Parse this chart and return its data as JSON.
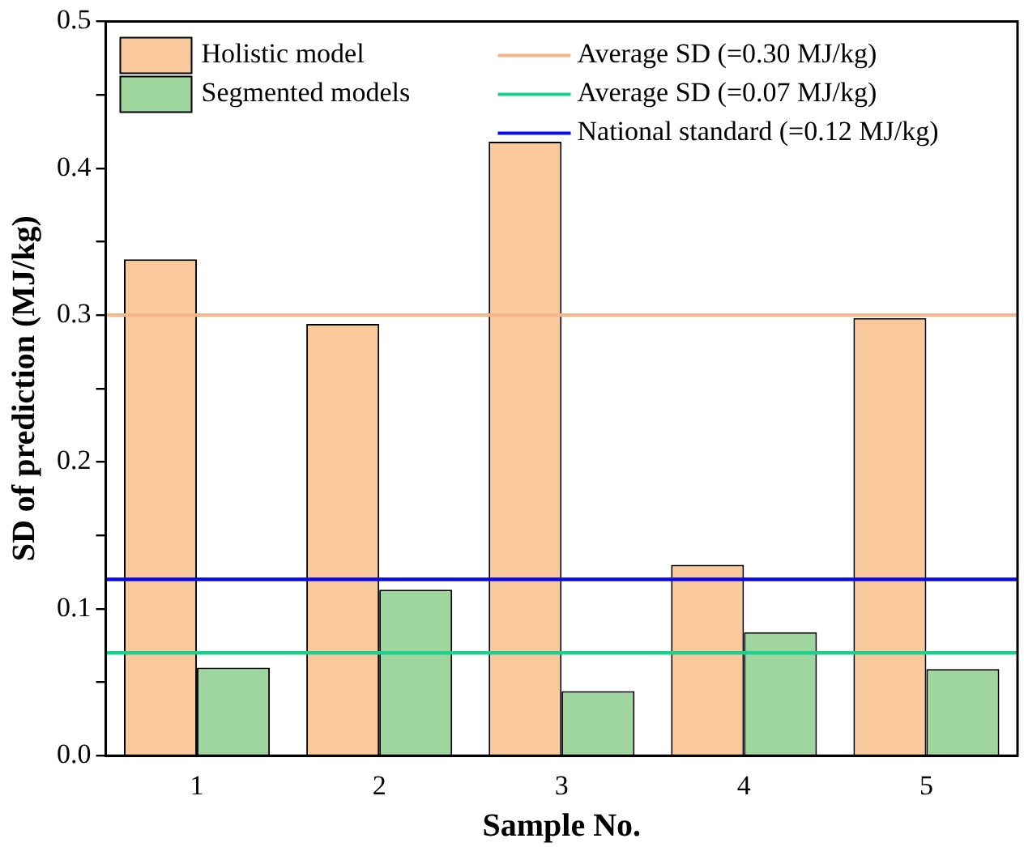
{
  "chart_data": {
    "type": "bar",
    "xlabel": "Sample No.",
    "ylabel": "SD of prediction (MJ/kg)",
    "categories": [
      "1",
      "2",
      "3",
      "4",
      "5"
    ],
    "series": [
      {
        "name": "Holistic model",
        "color": "#f9c89b",
        "values": [
          0.338,
          0.294,
          0.418,
          0.13,
          0.298
        ]
      },
      {
        "name": "Segmented models",
        "color": "#9fd69e",
        "values": [
          0.06,
          0.113,
          0.044,
          0.084,
          0.059
        ]
      }
    ],
    "ylim": [
      0,
      0.5
    ],
    "yticks": [
      {
        "value": 0,
        "label": "0.0"
      },
      {
        "value": 0.05,
        "label": null
      },
      {
        "value": 0.1,
        "label": "0.1"
      },
      {
        "value": 0.15,
        "label": null
      },
      {
        "value": 0.2,
        "label": "0.2"
      },
      {
        "value": 0.25,
        "label": null
      },
      {
        "value": 0.3,
        "label": "0.3"
      },
      {
        "value": 0.35,
        "label": null
      },
      {
        "value": 0.4,
        "label": "0.4"
      },
      {
        "value": 0.45,
        "label": null
      },
      {
        "value": 0.5,
        "label": "0.5"
      }
    ],
    "ref_lines": [
      {
        "axis": "y",
        "value": 0.3,
        "label": "Average SD (=0.30 MJ/kg)",
        "color": "#f5b78a"
      },
      {
        "axis": "y",
        "value": 0.07,
        "label": "Average SD (=0.07 MJ/kg)",
        "color": "#1fcf8f"
      },
      {
        "axis": "y",
        "value": 0.12,
        "label": "National standard (=0.12 MJ/kg)",
        "color": "#0a0ae6"
      }
    ],
    "grid": false,
    "legend": "top"
  }
}
